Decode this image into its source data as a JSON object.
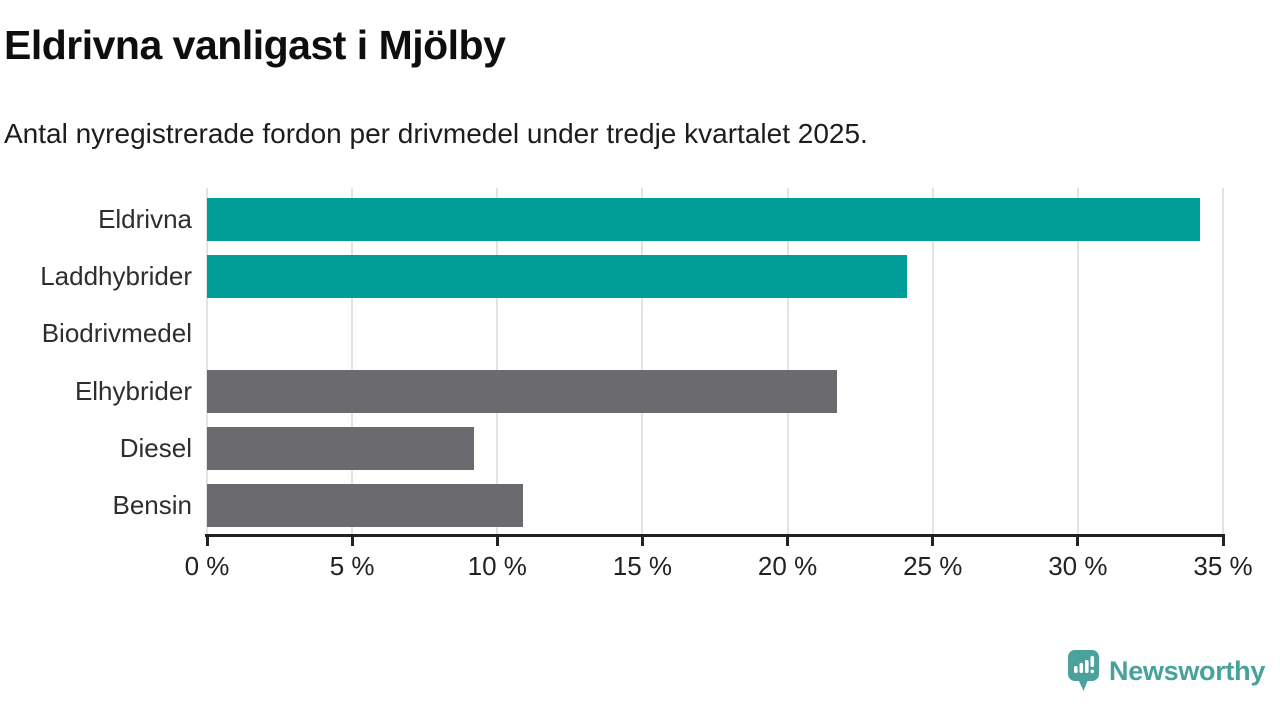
{
  "header": {
    "title": "Eldrivna vanligast i Mjölby",
    "subtitle": "Antal nyregistrerade fordon per drivmedel under tredje kvartalet 2025."
  },
  "chart_data": {
    "type": "bar",
    "orientation": "horizontal",
    "title": "Eldrivna vanligast i Mjölby",
    "subtitle": "Antal nyregistrerade fordon per drivmedel under tredje kvartalet 2025.",
    "categories": [
      "Eldrivna",
      "Laddhybrider",
      "Biodrivmedel",
      "Elhybrider",
      "Diesel",
      "Bensin"
    ],
    "values": [
      34.2,
      24.1,
      0,
      21.7,
      9.2,
      10.9
    ],
    "unit": "%",
    "bar_colors": [
      "#009e96",
      "#009e96",
      "#6a6a6f",
      "#6a6a6f",
      "#6a6a6f",
      "#6a6a6f"
    ],
    "xlabel": "",
    "ylabel": "",
    "xlim": [
      0,
      35
    ],
    "x_ticks": [
      0,
      5,
      10,
      15,
      20,
      25,
      30,
      35
    ],
    "x_tick_labels": [
      "0 %",
      "5 %",
      "10 %",
      "15 %",
      "20 %",
      "25 %",
      "30 %",
      "35 %"
    ],
    "grid": true,
    "legend_position": "none",
    "value_labels": false
  },
  "footer": {
    "brand": "Newsworthy"
  },
  "colors": {
    "accent_teal": "#009e96",
    "neutral_gray": "#6a6a6f",
    "brand_teal": "#46a29b",
    "grid": "#e3e3e3",
    "axis": "#222222"
  }
}
